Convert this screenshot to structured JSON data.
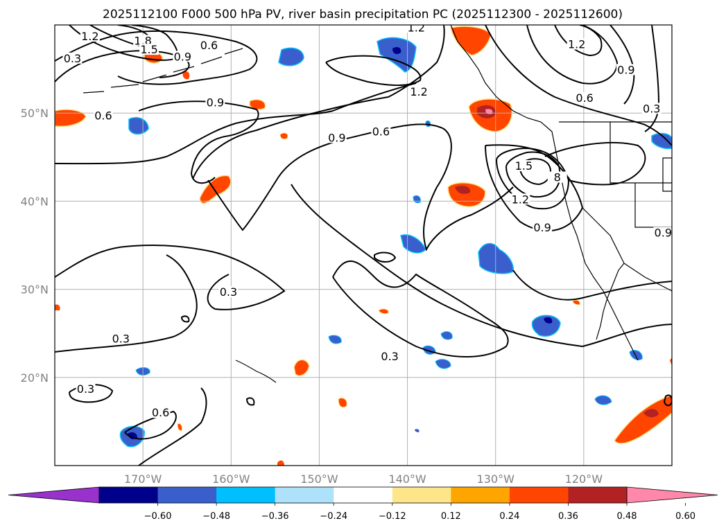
{
  "title": "2025112100 F000 500 hPa PV, river basin precipitation PC (2025112300 - 2025112600)",
  "map": {
    "lat_range": [
      10,
      60
    ],
    "lon_range": [
      -180,
      -110
    ],
    "lat_ticks": [
      {
        "value": 20,
        "label": "20°N"
      },
      {
        "value": 30,
        "label": "30°N"
      },
      {
        "value": 40,
        "label": "40°N"
      },
      {
        "value": 50,
        "label": "50°N"
      }
    ],
    "lon_ticks": [
      {
        "value": -170,
        "label": "170°W"
      },
      {
        "value": -160,
        "label": "160°W"
      },
      {
        "value": -150,
        "label": "150°W"
      },
      {
        "value": -140,
        "label": "140°W"
      },
      {
        "value": -130,
        "label": "130°W"
      },
      {
        "value": -120,
        "label": "120°W"
      }
    ],
    "grid": true,
    "gridline_color": "#b0b0b0",
    "contour_color": "#000000"
  },
  "contour_labels": [
    {
      "text": "1.2",
      "lon": -176.0,
      "lat": 58.5
    },
    {
      "text": "1.8",
      "lon": -170.0,
      "lat": 58.0
    },
    {
      "text": "1.5",
      "lon": -169.3,
      "lat": 57.0
    },
    {
      "text": "0.9",
      "lon": -165.5,
      "lat": 56.2
    },
    {
      "text": "0.6",
      "lon": -162.5,
      "lat": 57.5
    },
    {
      "text": "0.3",
      "lon": -178.0,
      "lat": 56.0
    },
    {
      "text": "0.9",
      "lon": -161.8,
      "lat": 51.0
    },
    {
      "text": "0.6",
      "lon": -174.5,
      "lat": 49.5
    },
    {
      "text": "1.2",
      "lon": -139.0,
      "lat": 59.5
    },
    {
      "text": "1.2",
      "lon": -138.7,
      "lat": 52.2
    },
    {
      "text": "1.2",
      "lon": -120.8,
      "lat": 57.6
    },
    {
      "text": "0.9",
      "lon": -115.2,
      "lat": 54.7
    },
    {
      "text": "0.6",
      "lon": -119.9,
      "lat": 51.5
    },
    {
      "text": "0.3",
      "lon": -112.3,
      "lat": 50.3
    },
    {
      "text": "0.9",
      "lon": -148.0,
      "lat": 47.0
    },
    {
      "text": "0.6",
      "lon": -143.0,
      "lat": 47.7
    },
    {
      "text": "1.5",
      "lon": -126.8,
      "lat": 43.8
    },
    {
      "text": "8",
      "lon": -123.0,
      "lat": 42.5
    },
    {
      "text": "1.2",
      "lon": -127.2,
      "lat": 40.0
    },
    {
      "text": "0.9",
      "lon": -124.7,
      "lat": 36.8
    },
    {
      "text": "0.9",
      "lon": -111.0,
      "lat": 36.2
    },
    {
      "text": "0.3",
      "lon": -160.3,
      "lat": 29.5
    },
    {
      "text": "0.3",
      "lon": -172.5,
      "lat": 24.2
    },
    {
      "text": "0.3",
      "lon": -142.0,
      "lat": 22.2
    },
    {
      "text": "0.3",
      "lon": -176.5,
      "lat": 18.5
    },
    {
      "text": "0.6",
      "lon": -168.0,
      "lat": 15.8
    }
  ],
  "colorbar": {
    "colors": [
      "#9932cc",
      "#00008b",
      "#3a5fcd",
      "#00bfff",
      "#aee2fa",
      "#ffffff",
      "#fde68a",
      "#ffa500",
      "#ff4500",
      "#b22222",
      "#ff88aa"
    ],
    "ticks": [
      "−0.60",
      "−0.48",
      "−0.36",
      "−0.24",
      "−0.12",
      "0.12",
      "0.24",
      "0.36",
      "0.48",
      "0.60"
    ],
    "extend": "both"
  }
}
